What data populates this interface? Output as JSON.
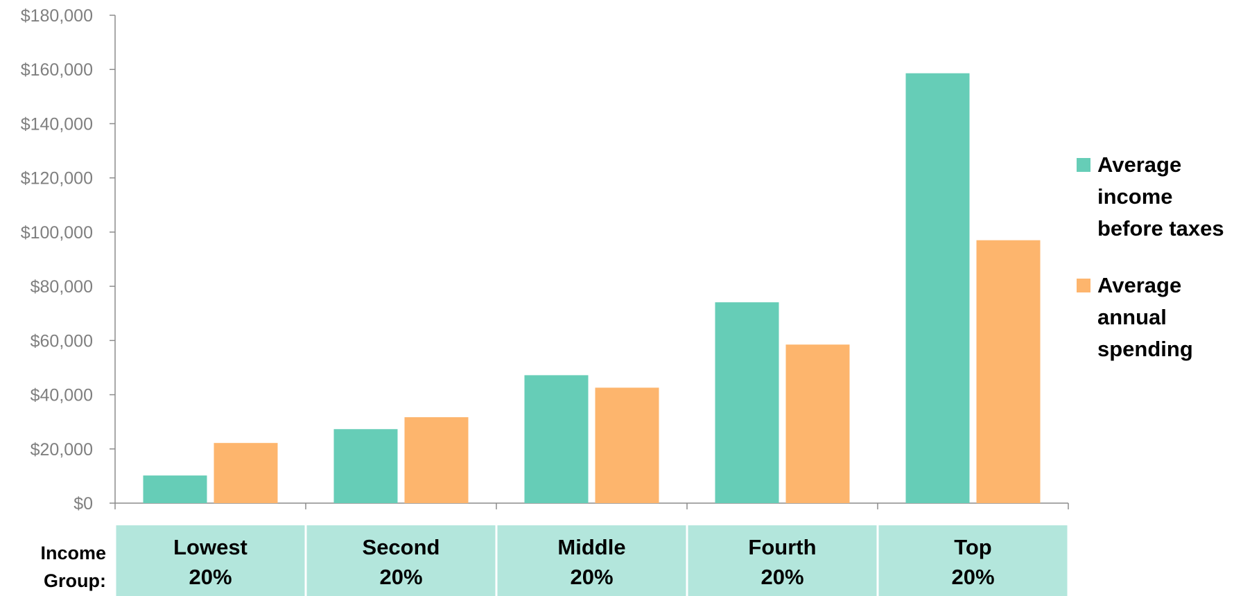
{
  "chart_data": {
    "type": "bar",
    "categories": [
      [
        "Lowest",
        "20%"
      ],
      [
        "Second",
        "20%"
      ],
      [
        "Middle",
        "20%"
      ],
      [
        "Fourth",
        "20%"
      ],
      [
        "Top",
        "20%"
      ]
    ],
    "category_axis_title": [
      "Income",
      "Group:"
    ],
    "series": [
      {
        "name": [
          "Average",
          "income",
          "before taxes"
        ],
        "color": "#66cdb7",
        "values": [
          10200,
          27300,
          47200,
          74100,
          158600
        ]
      },
      {
        "name": [
          "Average",
          "annual",
          "spending"
        ],
        "color": "#fdb56d",
        "values": [
          22200,
          31700,
          42600,
          58500,
          97000
        ]
      }
    ],
    "ylim": [
      0,
      180000
    ],
    "yticks": [
      "$0",
      "$20,000",
      "$40,000",
      "$60,000",
      "$80,000",
      "$100,000",
      "$120,000",
      "$140,000",
      "$160,000",
      "$180,000"
    ],
    "ytick_values": [
      0,
      20000,
      40000,
      60000,
      80000,
      100000,
      120000,
      140000,
      160000,
      180000
    ],
    "category_band_color": "#b3e6dc",
    "legend_position": "right",
    "grid": false
  }
}
